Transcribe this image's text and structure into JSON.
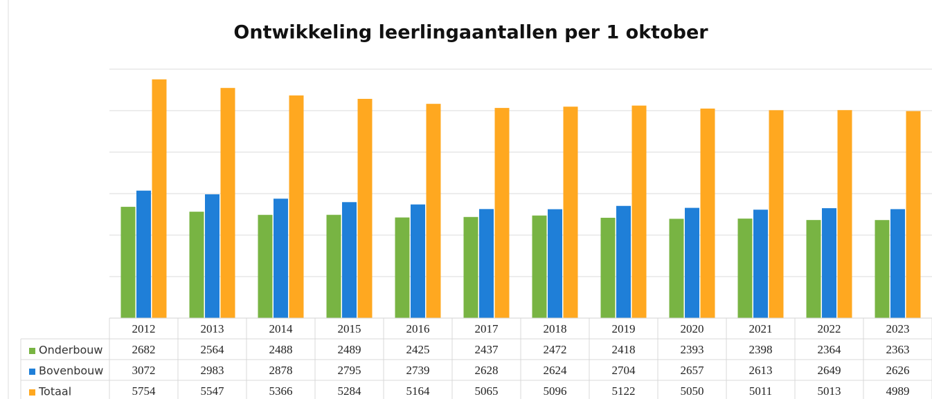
{
  "chart_data": {
    "type": "bar",
    "title": "Ontwikkeling leerlingaantallen per 1 oktober",
    "categories": [
      "2012",
      "2013",
      "2014",
      "2015",
      "2016",
      "2017",
      "2018",
      "2019",
      "2020",
      "2021",
      "2022",
      "2023"
    ],
    "series": [
      {
        "name": "Onderbouw",
        "color": "#78b443",
        "values": [
          2682,
          2564,
          2488,
          2489,
          2425,
          2437,
          2472,
          2418,
          2393,
          2398,
          2364,
          2363
        ]
      },
      {
        "name": "Bovenbouw",
        "color": "#1f7fd8",
        "values": [
          3072,
          2983,
          2878,
          2795,
          2739,
          2628,
          2624,
          2704,
          2657,
          2613,
          2649,
          2626
        ]
      },
      {
        "name": "Totaal",
        "color": "#ffa820",
        "values": [
          5754,
          5547,
          5366,
          5284,
          5164,
          5065,
          5096,
          5122,
          5050,
          5011,
          5013,
          4989
        ]
      }
    ],
    "ylim": [
      0,
      6000
    ],
    "yticks": [
      0,
      1000,
      2000,
      3000,
      4000,
      5000,
      6000
    ],
    "grid": true
  }
}
